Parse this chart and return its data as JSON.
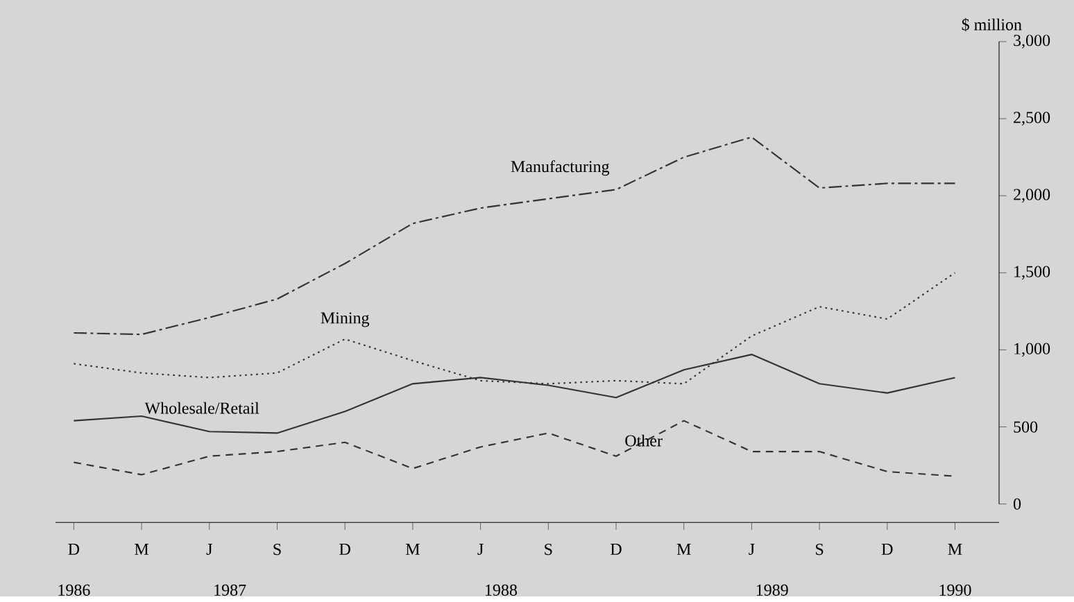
{
  "chart_data": {
    "type": "line",
    "ylabel": "$ million",
    "categories": [
      "D",
      "M",
      "J",
      "S",
      "D",
      "M",
      "J",
      "S",
      "D",
      "M",
      "J",
      "S",
      "D",
      "M"
    ],
    "ylim": [
      0,
      3000
    ],
    "yticks": [
      {
        "value": 0,
        "label": "0"
      },
      {
        "value": 500,
        "label": "500"
      },
      {
        "value": 1000,
        "label": "1,000"
      },
      {
        "value": 1500,
        "label": "1,500"
      },
      {
        "value": 2000,
        "label": "2,000"
      },
      {
        "value": 2500,
        "label": "2,500"
      },
      {
        "value": 3000,
        "label": "3,000"
      }
    ],
    "annotations": [
      "1986",
      "1987",
      "1988",
      "1989",
      "1990"
    ],
    "grid": false,
    "legend": false,
    "marker": "none",
    "series": [
      {
        "name": "Manufacturing",
        "color": "#333333",
        "line_style": "dashdot",
        "values": [
          1110,
          1100,
          1210,
          1330,
          1560,
          1820,
          1920,
          1980,
          2040,
          2250,
          2380,
          2050,
          2080,
          2080
        ]
      },
      {
        "name": "Mining",
        "color": "#333333",
        "line_style": "dotted",
        "values": [
          910,
          850,
          820,
          850,
          1070,
          930,
          800,
          780,
          800,
          780,
          1090,
          1280,
          1200,
          1500
        ]
      },
      {
        "name": "Wholesale/Retail",
        "color": "#333333",
        "line_style": "solid",
        "values": [
          540,
          570,
          470,
          460,
          600,
          780,
          820,
          770,
          690,
          870,
          970,
          780,
          720,
          820
        ]
      },
      {
        "name": "Other",
        "color": "#333333",
        "line_style": "dashed",
        "values": [
          270,
          190,
          310,
          340,
          400,
          230,
          370,
          460,
          310,
          540,
          340,
          340,
          210,
          180
        ]
      }
    ]
  }
}
